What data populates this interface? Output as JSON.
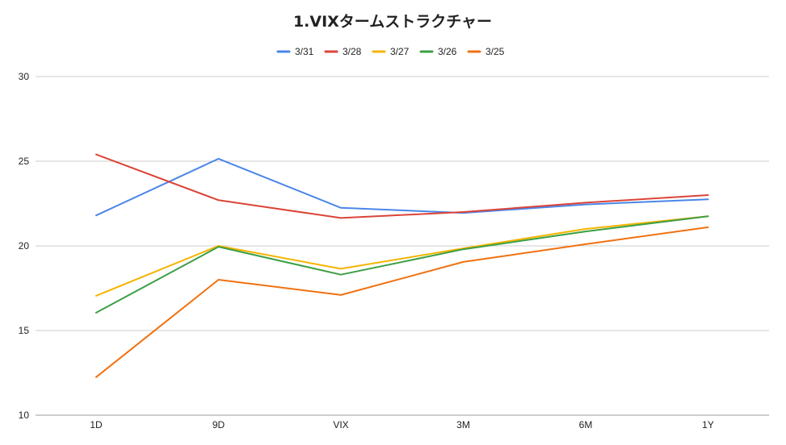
{
  "chart_data": {
    "type": "line",
    "title": "1.VIXタームストラクチャー",
    "xlabel": "",
    "ylabel": "",
    "categories": [
      "1D",
      "9D",
      "VIX",
      "3M",
      "6M",
      "1Y"
    ],
    "ylim": [
      10,
      30
    ],
    "yticks": [
      10,
      15,
      20,
      25,
      30
    ],
    "grid": true,
    "legend_position": "top",
    "series": [
      {
        "name": "3/31",
        "color": "#4a86e8",
        "values": [
          21.8,
          25.15,
          22.25,
          21.95,
          22.45,
          22.75
        ]
      },
      {
        "name": "3/28",
        "color": "#db4437",
        "values": [
          25.4,
          22.7,
          21.65,
          22.0,
          22.55,
          23.0
        ]
      },
      {
        "name": "3/27",
        "color": "#f4b400",
        "values": [
          17.05,
          20.0,
          18.65,
          19.85,
          21.0,
          21.75
        ]
      },
      {
        "name": "3/26",
        "color": "#3c9f45",
        "values": [
          16.05,
          19.95,
          18.3,
          19.8,
          20.85,
          21.75
        ]
      },
      {
        "name": "3/25",
        "color": "#f07110",
        "values": [
          12.25,
          18.0,
          17.1,
          19.05,
          20.1,
          21.1
        ]
      }
    ]
  }
}
